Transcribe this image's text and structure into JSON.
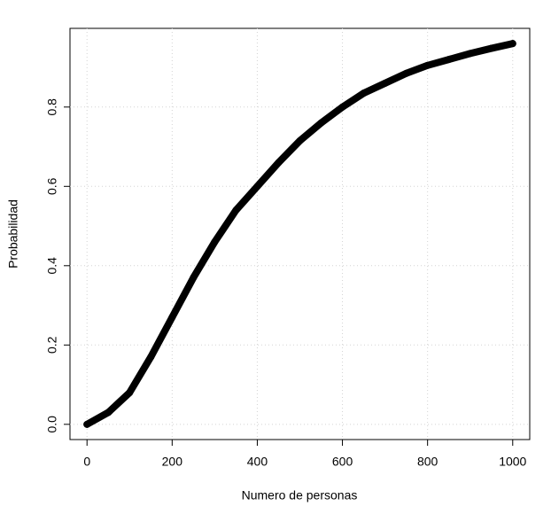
{
  "chart_data": {
    "type": "scatter",
    "x_label": "Numero de personas",
    "y_label": "Probabilidad",
    "x": [
      0,
      50,
      100,
      150,
      200,
      250,
      300,
      350,
      400,
      450,
      500,
      550,
      600,
      650,
      700,
      750,
      800,
      850,
      900,
      950,
      1000
    ],
    "series": [
      {
        "color": "#000000",
        "values": [
          0,
          0.03,
          0.08,
          0.17,
          0.27,
          0.37,
          0.46,
          0.54,
          0.6,
          0.66,
          0.715,
          0.76,
          0.8,
          0.835,
          0.86,
          0.885,
          0.905,
          0.92,
          0.935,
          0.948,
          0.96
        ]
      }
    ],
    "xlim": [
      -40,
      1040
    ],
    "ylim": [
      -0.0384,
      0.9984
    ],
    "xticks": [
      0,
      200,
      400,
      600,
      800,
      1000
    ],
    "yticks": [
      {
        "value": 0,
        "label": "0.0"
      },
      0.2,
      0.4,
      0.6,
      0.8
    ],
    "grid": true
  }
}
